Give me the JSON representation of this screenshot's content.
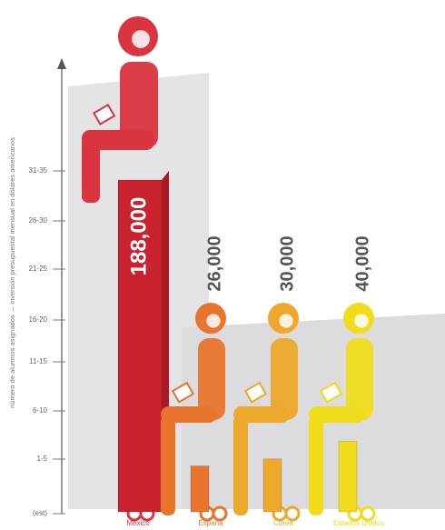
{
  "chart_data": {
    "type": "bar",
    "y_axis_label": "número de alumnos asignados ↔ inversión presupuestal mensual en dólares americanos",
    "ylabels": [
      "(est)",
      "1-5",
      "6-10",
      "11-15",
      "16-20",
      "21-25",
      "26-30",
      "31-35"
    ],
    "categories": [
      "México",
      "España",
      "Corea",
      "Estados Unidos"
    ],
    "values": [
      188000,
      26000,
      30000,
      40000
    ],
    "value_labels": [
      "188,000",
      "26,000",
      "30,000",
      "40,000"
    ],
    "colors": [
      "#d9343f",
      "#e8742e",
      "#eea82a",
      "#f0dc1a"
    ]
  }
}
